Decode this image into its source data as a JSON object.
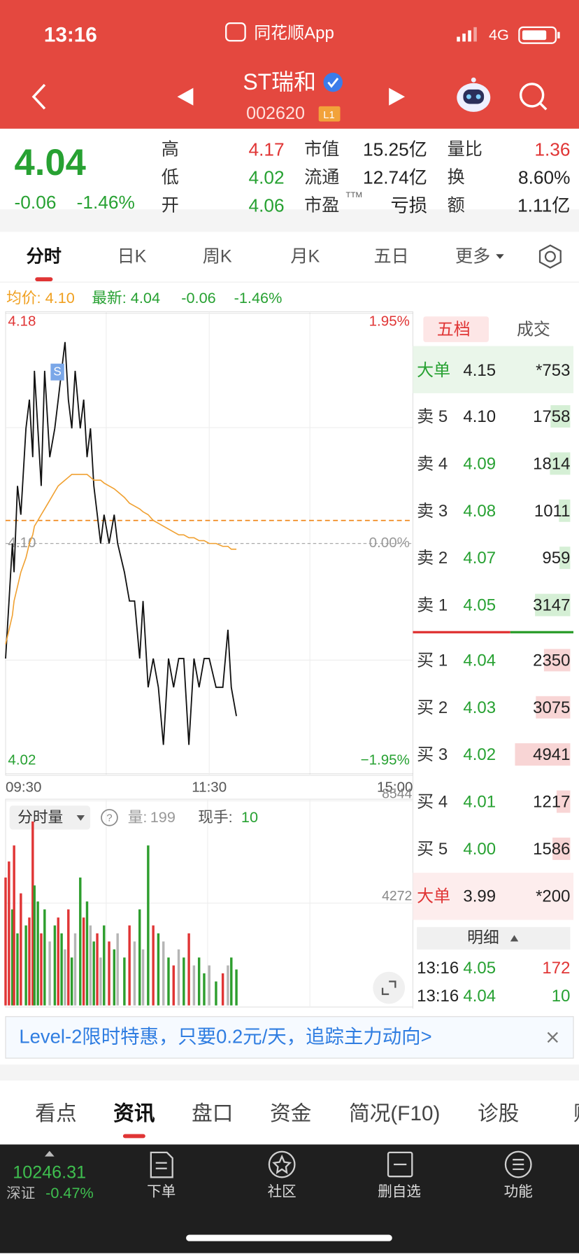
{
  "status_bar": {
    "time": "13:16",
    "app": "同花顺App",
    "network": "4G"
  },
  "header": {
    "name": "ST瑞和",
    "code": "002620",
    "badge": "L1"
  },
  "quote": {
    "price": "4.04",
    "change": "-0.06",
    "change_pct": "-1.46%",
    "stats": [
      [
        {
          "label": "高",
          "value": "4.17"
        },
        {
          "label": "市值",
          "value": "15.25亿"
        },
        {
          "label": "量比",
          "value": "1.36"
        }
      ],
      [
        {
          "label": "低",
          "value": "4.02"
        },
        {
          "label": "流通",
          "value": "12.74亿"
        },
        {
          "label": "换",
          "value": "8.60%"
        }
      ],
      [
        {
          "label": "开",
          "value": "4.06"
        },
        {
          "label": "市盈",
          "sup": "TTM",
          "value": "亏损"
        },
        {
          "label": "额",
          "value": "1.11亿"
        }
      ]
    ]
  },
  "tabs": [
    "分时",
    "日K",
    "周K",
    "月K",
    "五日",
    "更多"
  ],
  "info": {
    "avg": "均价: 4.10",
    "latest": "最新: 4.04",
    "change": "-0.06",
    "change_pct": "-1.46%"
  },
  "chart_data": [
    {
      "type": "line",
      "x": [
        "09:30",
        "09:32",
        "09:34",
        "09:35",
        "09:37",
        "09:39",
        "09:42",
        "09:44",
        "09:46",
        "09:47",
        "09:49",
        "09:51",
        "09:53",
        "09:56",
        "09:59",
        "10:01",
        "10:03",
        "10:05",
        "10:07",
        "10:09",
        "10:11",
        "10:14",
        "10:16",
        "10:18",
        "10:20",
        "10:22",
        "10:24",
        "10:26",
        "10:28",
        "10:31",
        "10:34",
        "10:36",
        "10:40",
        "10:43",
        "10:46",
        "10:49",
        "10:51",
        "10:54",
        "10:57",
        "11:00",
        "11:03",
        "11:06",
        "11:09",
        "11:12",
        "11:15",
        "11:18",
        "11:21",
        "11:24",
        "11:27",
        "11:30",
        "13:04",
        "13:08",
        "13:11",
        "13:13",
        "13:16"
      ],
      "series": [
        {
          "color": "#111111",
          "values": [
            4.06,
            4.08,
            4.1,
            4.09,
            4.12,
            4.11,
            4.14,
            4.15,
            4.13,
            4.16,
            4.14,
            4.12,
            4.16,
            4.13,
            4.14,
            4.15,
            4.16,
            4.17,
            4.15,
            4.14,
            4.16,
            4.14,
            4.15,
            4.13,
            4.14,
            4.12,
            4.11,
            4.1,
            4.11,
            4.1,
            4.11,
            4.1,
            4.09,
            4.08,
            4.08,
            4.06,
            4.08,
            4.05,
            4.06,
            4.05,
            4.03,
            4.06,
            4.05,
            4.06,
            4.06,
            4.03,
            4.06,
            4.05,
            4.06,
            4.06,
            4.05,
            4.05,
            4.07,
            4.05,
            4.04
          ]
        },
        {
          "color": "#f0a030",
          "values": [
            4.065,
            4.07,
            4.075,
            4.08,
            4.085,
            4.09,
            4.095,
            4.1,
            4.103,
            4.106,
            4.108,
            4.11,
            4.112,
            4.115,
            4.118,
            4.12,
            4.121,
            4.122,
            4.123,
            4.124,
            4.124,
            4.124,
            4.124,
            4.124,
            4.123,
            4.122,
            4.122,
            4.122,
            4.121,
            4.12,
            4.119,
            4.118,
            4.116,
            4.114,
            4.113,
            4.112,
            4.111,
            4.11,
            4.108,
            4.107,
            4.106,
            4.105,
            4.104,
            4.103,
            4.103,
            4.102,
            4.102,
            4.101,
            4.101,
            4.1,
            4.1,
            4.099,
            4.099,
            4.098,
            4.098
          ]
        }
      ],
      "avg_level": 4.108,
      "annotation": {
        "text": "S",
        "x": "10:05"
      },
      "xlim": [
        "09:30",
        "15:00"
      ],
      "xticks": [
        "09:30",
        "11:30",
        "15:00"
      ],
      "ylim": [
        4.02,
        4.18
      ],
      "yticks": [
        4.18,
        {
          "value": 4.1,
          "label": "4.10"
        },
        4.02
      ],
      "y2lim": [
        -1.95,
        1.95
      ],
      "y2ticks": [
        {
          "value": 1.95,
          "label": "1.95%"
        },
        {
          "value": 0,
          "label": "0.00%"
        },
        {
          "value": -1.95,
          "label": "−1.95%"
        }
      ]
    },
    {
      "type": "bar",
      "title": "分时量",
      "x": [
        "09:30",
        "09:32",
        "09:34",
        "09:35",
        "09:37",
        "09:39",
        "09:42",
        "09:44",
        "09:46",
        "09:47",
        "09:49",
        "09:51",
        "09:53",
        "09:56",
        "09:59",
        "10:01",
        "10:03",
        "10:05",
        "10:07",
        "10:09",
        "10:11",
        "10:14",
        "10:16",
        "10:18",
        "10:20",
        "10:22",
        "10:24",
        "10:26",
        "10:28",
        "10:31",
        "10:34",
        "10:36",
        "10:40",
        "10:43",
        "10:46",
        "10:49",
        "10:51",
        "10:54",
        "10:57",
        "11:00",
        "11:03",
        "11:06",
        "11:09",
        "11:12",
        "11:15",
        "11:18",
        "11:21",
        "11:24",
        "11:27",
        "11:30",
        "13:04",
        "13:08",
        "13:11",
        "13:13",
        "13:16"
      ],
      "values": [
        5340,
        6010,
        4010,
        6680,
        3010,
        4680,
        3340,
        3670,
        7680,
        5010,
        4340,
        3010,
        4010,
        2670,
        3340,
        3670,
        3010,
        2340,
        4010,
        2000,
        3010,
        5340,
        3670,
        4340,
        3340,
        2670,
        3010,
        2000,
        3340,
        2670,
        2340,
        3010,
        2000,
        3340,
        2670,
        4010,
        2340,
        6680,
        3340,
        3010,
        2670,
        2000,
        1670,
        2340,
        2000,
        3010,
        1670,
        2000,
        1340,
        1670,
        1000,
        1340,
        1670,
        2000,
        1500
      ],
      "colors": [
        "#e03535",
        "#e03535",
        "#2e9e2e",
        "#e03535",
        "#2e9e2e",
        "#e03535",
        "#2e9e2e",
        "#e03535",
        "#e03535",
        "#2e9e2e",
        "#2e9e2e",
        "#e03535",
        "#2e9e2e",
        "#b5b5b5",
        "#2e9e2e",
        "#e03535",
        "#2e9e2e",
        "#b5b5b5",
        "#e03535",
        "#2e9e2e",
        "#b5b5b5",
        "#2e9e2e",
        "#e03535",
        "#2e9e2e",
        "#b5b5b5",
        "#2e9e2e",
        "#e03535",
        "#b5b5b5",
        "#2e9e2e",
        "#e03535",
        "#2e9e2e",
        "#b5b5b5",
        "#2e9e2e",
        "#e03535",
        "#b5b5b5",
        "#2e9e2e",
        "#b5b5b5",
        "#2e9e2e",
        "#e03535",
        "#2e9e2e",
        "#b5b5b5",
        "#2e9e2e",
        "#e03535",
        "#b5b5b5",
        "#2e9e2e",
        "#e03535",
        "#b5b5b5",
        "#2e9e2e",
        "#2e9e2e",
        "#b5b5b5",
        "#2e9e2e",
        "#e03535",
        "#b5b5b5",
        "#2e9e2e",
        "#2e9e2e"
      ],
      "xlim": [
        "09:30",
        "15:00"
      ],
      "ylim": [
        0,
        8544
      ],
      "yticks": [
        4272,
        8544
      ],
      "volume_label": "量:",
      "volume": "199",
      "hand_label": "现手:",
      "hand": "10"
    }
  ],
  "order_book": {
    "tabs": [
      "五档",
      "成交"
    ],
    "rows": [
      {
        "label": "大单",
        "price": "4.15",
        "qty": "*753"
      },
      {
        "label": "卖 5",
        "price": "4.10",
        "qty": 1758
      },
      {
        "label": "卖 4",
        "price": "4.09",
        "qty": 1814
      },
      {
        "label": "卖 3",
        "price": "4.08",
        "qty": 1011
      },
      {
        "label": "卖 2",
        "price": "4.07",
        "qty": 959
      },
      {
        "label": "卖 1",
        "price": "4.05",
        "qty": 3147
      },
      {
        "label": "买 1",
        "price": "4.04",
        "qty": 2350
      },
      {
        "label": "买 2",
        "price": "4.03",
        "qty": 3075
      },
      {
        "label": "买 3",
        "price": "4.02",
        "qty": 4941
      },
      {
        "label": "买 4",
        "price": "4.01",
        "qty": 1217
      },
      {
        "label": "买 5",
        "price": "4.00",
        "qty": 1586
      },
      {
        "label": "大单",
        "price": "3.99",
        "qty": "*200"
      }
    ]
  },
  "detail": {
    "title": "明细",
    "rows": [
      [
        "13:16",
        "4.05",
        "172"
      ],
      [
        "13:16",
        "4.04",
        "10"
      ]
    ]
  },
  "banner": "Level-2限时特惠，只要0.2元/天，追踪主力动向>",
  "bottom_tabs": [
    "看点",
    "资讯",
    "盘口",
    "资金",
    "简况(F10)",
    "诊股",
    "财务"
  ],
  "nav": {
    "index_value": "10246.31",
    "index_name": "深证",
    "index_change": "-0.47%",
    "items": [
      "下单",
      "社区",
      "删自选",
      "功能"
    ]
  }
}
